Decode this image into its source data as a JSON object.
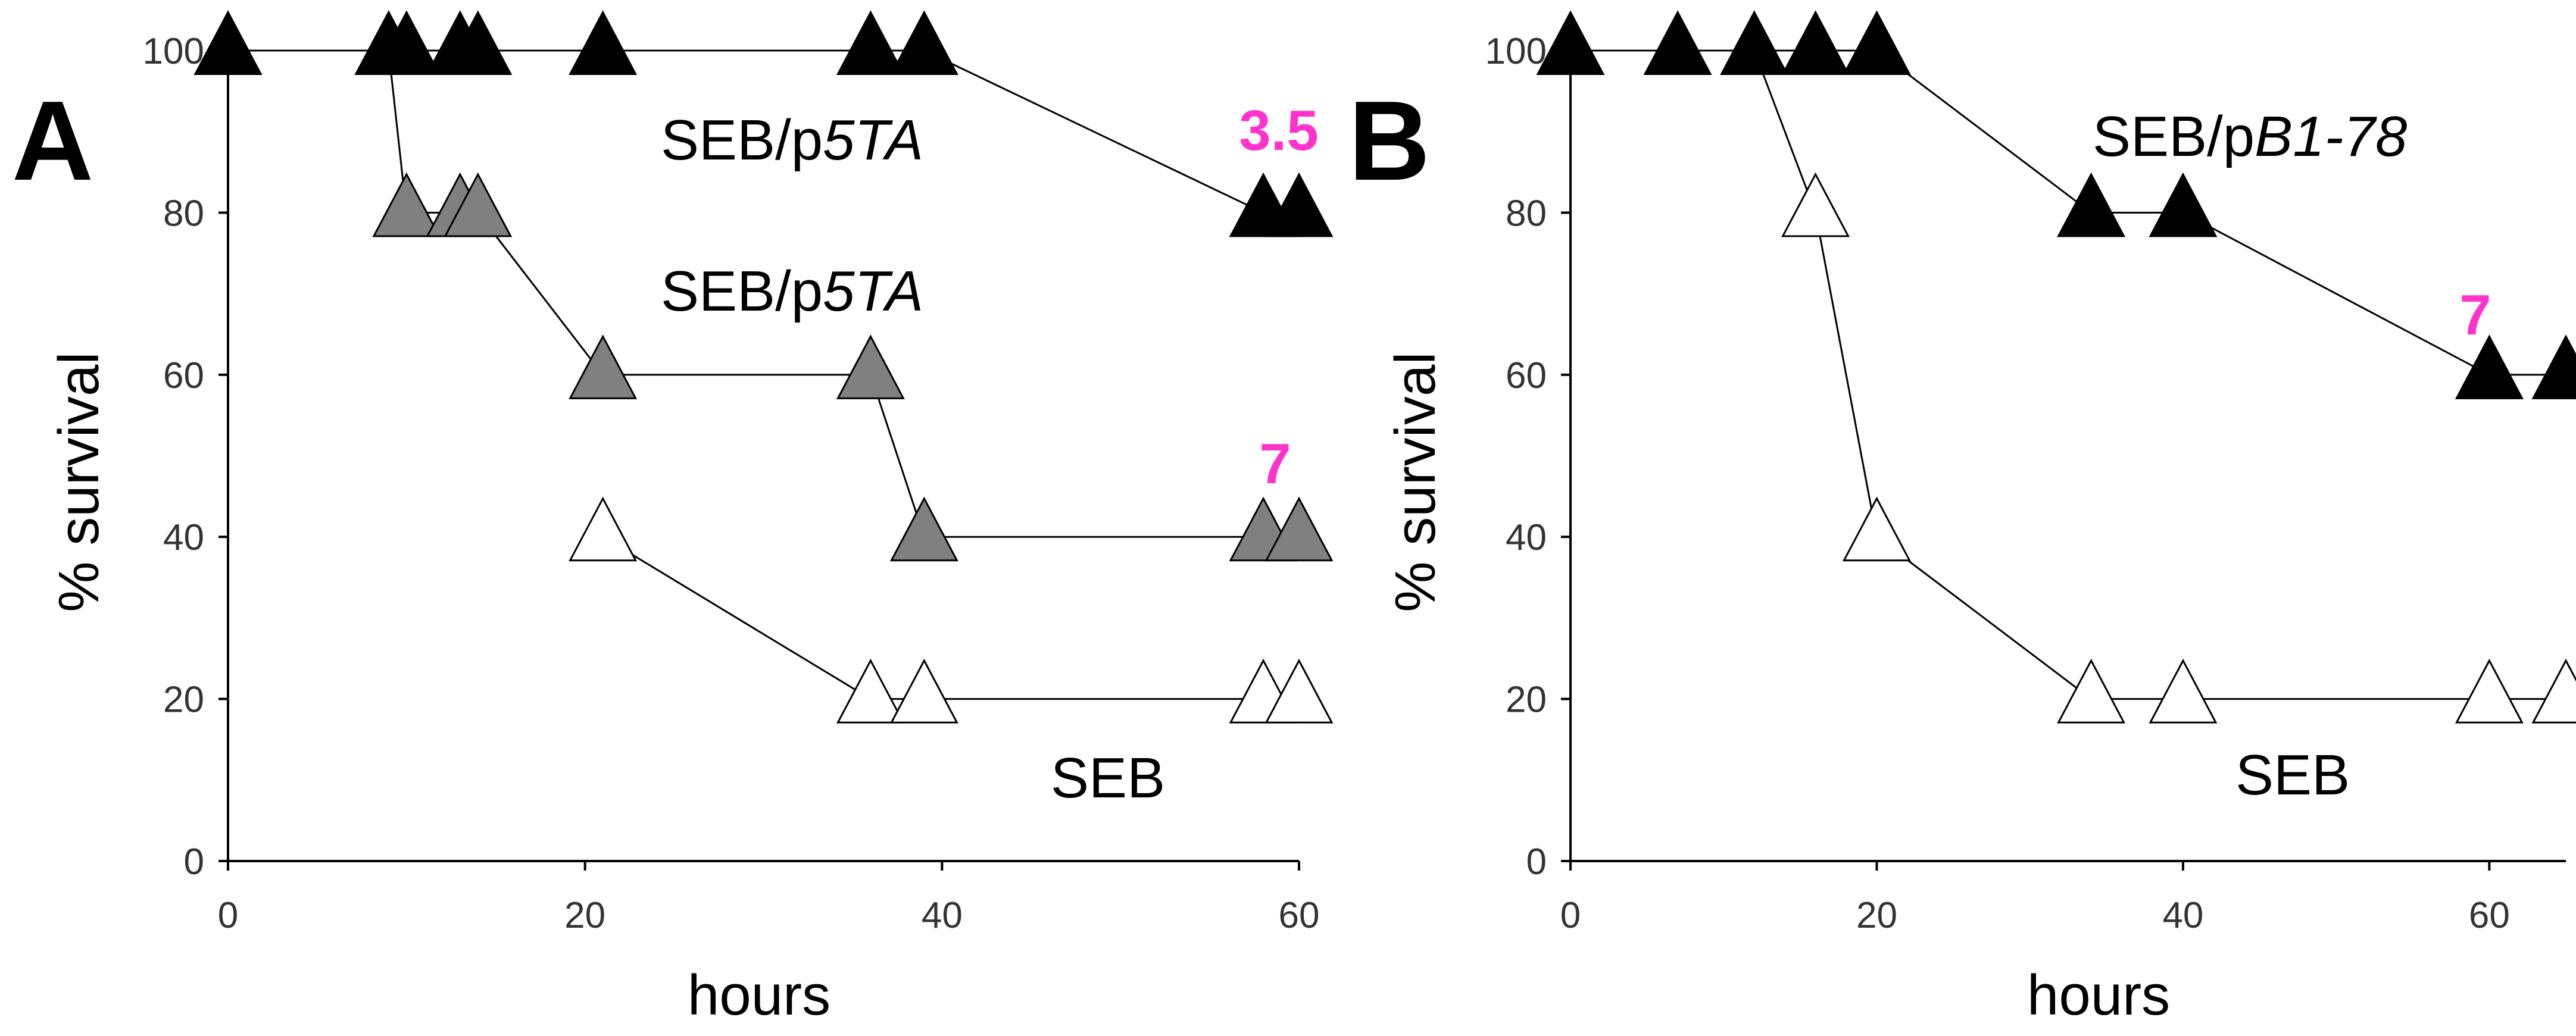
{
  "chart_data": [
    {
      "type": "line",
      "panel": "A",
      "xlabel": "hours",
      "ylabel": "% survival",
      "xlim": [
        0,
        60
      ],
      "ylim": [
        0,
        100
      ],
      "xticks": [
        "0",
        "20",
        "40",
        "60"
      ],
      "yticks": [
        "0",
        "20",
        "40",
        "60",
        "80",
        "100"
      ],
      "grid": false,
      "series": [
        {
          "name": "SEB/p5TA (3.5)",
          "label_prefix": "SEB/p",
          "label_italic": "5TA",
          "marker": "filled-triangle",
          "color": "#000000",
          "x": [
            0,
            9,
            10,
            13,
            14,
            21,
            36,
            39,
            58,
            60
          ],
          "y": [
            100,
            100,
            100,
            100,
            100,
            100,
            100,
            100,
            80,
            80
          ]
        },
        {
          "name": "SEB/p5TA (7)",
          "label_prefix": "SEB/p",
          "label_italic": "5TA",
          "marker": "grey-triangle",
          "color": "#808080",
          "x": [
            0,
            9,
            10,
            13,
            14,
            21,
            36,
            39,
            58,
            60
          ],
          "y": [
            100,
            100,
            80,
            80,
            80,
            60,
            60,
            40,
            40,
            40
          ]
        },
        {
          "name": "SEB",
          "label_prefix": "SEB",
          "label_italic": "",
          "marker": "open-triangle",
          "color": "#ffffff",
          "x": [
            21,
            36,
            39,
            58,
            60
          ],
          "y": [
            40,
            20,
            20,
            20,
            20
          ]
        }
      ],
      "annotations": [
        {
          "text": "3.5",
          "color": "#ff33cc"
        },
        {
          "text": "7",
          "color": "#ff33cc"
        }
      ]
    },
    {
      "type": "line",
      "panel": "B",
      "xlabel": "hours",
      "ylabel": "% survival",
      "xlim": [
        0,
        65
      ],
      "ylim": [
        0,
        100
      ],
      "xticks": [
        "0",
        "20",
        "40",
        "60"
      ],
      "yticks": [
        "0",
        "20",
        "40",
        "60",
        "80",
        "100"
      ],
      "grid": false,
      "series": [
        {
          "name": "SEB/pB1-78",
          "label_prefix": "SEB/p",
          "label_italic": "B1-78",
          "marker": "filled-triangle",
          "color": "#000000",
          "x": [
            0,
            7,
            12,
            16,
            20,
            34,
            40,
            60,
            65
          ],
          "y": [
            100,
            100,
            100,
            100,
            100,
            80,
            80,
            60,
            60
          ]
        },
        {
          "name": "SEB",
          "label_prefix": "SEB",
          "label_italic": "",
          "marker": "open-triangle",
          "color": "#ffffff",
          "x": [
            12,
            16,
            20,
            34,
            40,
            60,
            65
          ],
          "y": [
            100,
            80,
            40,
            20,
            20,
            20,
            20
          ]
        }
      ],
      "annotations": [
        {
          "text": "7",
          "color": "#ff33cc"
        }
      ]
    }
  ]
}
